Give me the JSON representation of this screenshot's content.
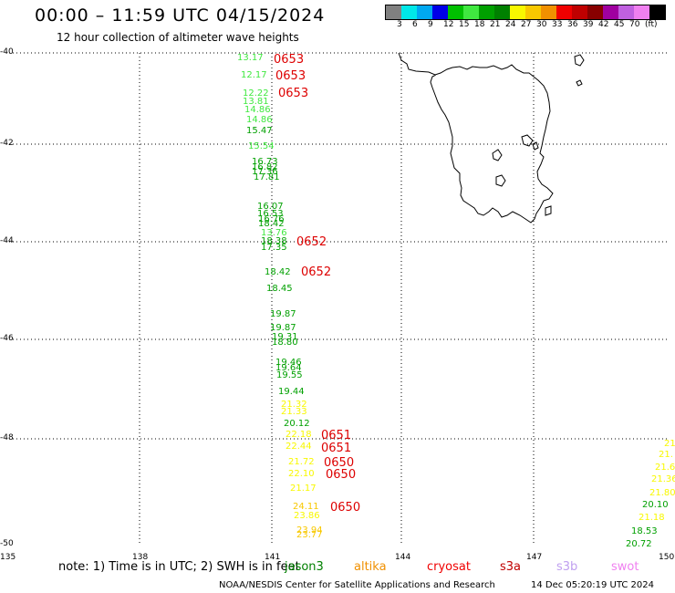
{
  "header": {
    "title": "00:00 – 11:59 UTC 04/15/2024",
    "subtitle": "12 hour collection of altimeter wave heights"
  },
  "legend": {
    "colors": [
      "#808080",
      "#00e8e8",
      "#00a8f0",
      "#0000e8",
      "#00c000",
      "#40e840",
      "#00a000",
      "#008000",
      "#f8f800",
      "#f8c800",
      "#f09000",
      "#f00000",
      "#c00000",
      "#880000",
      "#a000a0",
      "#c060e0",
      "#f080f0",
      "#000000"
    ],
    "labels": [
      "3",
      "6",
      "9",
      "12",
      "15",
      "18",
      "21",
      "24",
      "27",
      "30",
      "33",
      "36",
      "39",
      "42",
      "45",
      "70",
      "(ft)"
    ]
  },
  "axes": {
    "lat_labels": [
      "-40",
      "-42",
      "-44",
      "-46",
      "-48",
      "-50"
    ],
    "lon_labels": [
      "135",
      "138",
      "141",
      "144",
      "147",
      "150"
    ]
  },
  "wave_track_1": [
    {
      "v": "13.17",
      "c": "#40e840"
    },
    {
      "v": "12.17",
      "c": "#40e840"
    },
    {
      "v": "12.22",
      "c": "#40e840"
    },
    {
      "v": "13.81",
      "c": "#40e840"
    },
    {
      "v": "14.86",
      "c": "#40e840"
    },
    {
      "v": "14.86",
      "c": "#40e840"
    },
    {
      "v": "15.47",
      "c": "#00a000"
    },
    {
      "v": "15.54",
      "c": "#40e840"
    },
    {
      "v": "16.73",
      "c": "#00a000"
    },
    {
      "v": "16.82",
      "c": "#00a000"
    },
    {
      "v": "17.36",
      "c": "#00a000"
    },
    {
      "v": "17.81",
      "c": "#00a000"
    },
    {
      "v": "16.07",
      "c": "#00a000"
    },
    {
      "v": "16.53",
      "c": "#00a000"
    },
    {
      "v": "16.76",
      "c": "#00a000"
    },
    {
      "v": "18.42",
      "c": "#00a000"
    },
    {
      "v": "13.76",
      "c": "#40e840"
    },
    {
      "v": "18.38",
      "c": "#00a000"
    },
    {
      "v": "17.35",
      "c": "#00a000"
    },
    {
      "v": "18.42",
      "c": "#00a000"
    },
    {
      "v": "18.45",
      "c": "#00a000"
    },
    {
      "v": "19.87",
      "c": "#00a000"
    },
    {
      "v": "19.87",
      "c": "#00a000"
    },
    {
      "v": "19.31",
      "c": "#00a000"
    },
    {
      "v": "18.80",
      "c": "#00a000"
    },
    {
      "v": "19.46",
      "c": "#00a000"
    },
    {
      "v": "19.64",
      "c": "#00a000"
    },
    {
      "v": "19.55",
      "c": "#00a000"
    },
    {
      "v": "19.44",
      "c": "#00a000"
    },
    {
      "v": "21.32",
      "c": "#f8f800"
    },
    {
      "v": "21.33",
      "c": "#f8f800"
    },
    {
      "v": "20.12",
      "c": "#00a000"
    },
    {
      "v": "22.18",
      "c": "#f8f800"
    },
    {
      "v": "22.44",
      "c": "#f8f800"
    },
    {
      "v": "21.72",
      "c": "#f8f800"
    },
    {
      "v": "22.10",
      "c": "#f8f800"
    },
    {
      "v": "21.17",
      "c": "#f8f800"
    },
    {
      "v": "24.11",
      "c": "#f8c800"
    },
    {
      "v": "23.86",
      "c": "#f8f800"
    },
    {
      "v": "23.94",
      "c": "#f8c800"
    },
    {
      "v": "23.77",
      "c": "#f8c800"
    }
  ],
  "wave_track_2": [
    {
      "v": "21.",
      "c": "#f8f800"
    },
    {
      "v": "21.",
      "c": "#f8f800"
    },
    {
      "v": "21.6",
      "c": "#f8f800"
    },
    {
      "v": "21.36",
      "c": "#f8f800"
    },
    {
      "v": "21.80",
      "c": "#f8f800"
    },
    {
      "v": "20.10",
      "c": "#00a000"
    },
    {
      "v": "21.18",
      "c": "#f8f800"
    },
    {
      "v": "18.53",
      "c": "#00a000"
    },
    {
      "v": "20.72",
      "c": "#00a000"
    }
  ],
  "time_tags": [
    "0653",
    "0653",
    "0653",
    "0652",
    "0652",
    "0651",
    "0651",
    "0650",
    "0650",
    "0650"
  ],
  "footer": {
    "note": "note: 1) Time is in UTC; 2) SWH is in feet",
    "satellites": [
      {
        "name": "jason3",
        "color": "#008000"
      },
      {
        "name": "altika",
        "color": "#f09000"
      },
      {
        "name": "cryosat",
        "color": "#f00000"
      },
      {
        "name": "s3a",
        "color": "#c00000"
      },
      {
        "name": "s3b",
        "color": "#c0a0f0"
      },
      {
        "name": "swot",
        "color": "#f080f0"
      }
    ],
    "credit": "NOAA/NESDIS Center for Satellite Applications and Research",
    "timestamp": "14 Dec 05:20:19 UTC 2024"
  }
}
